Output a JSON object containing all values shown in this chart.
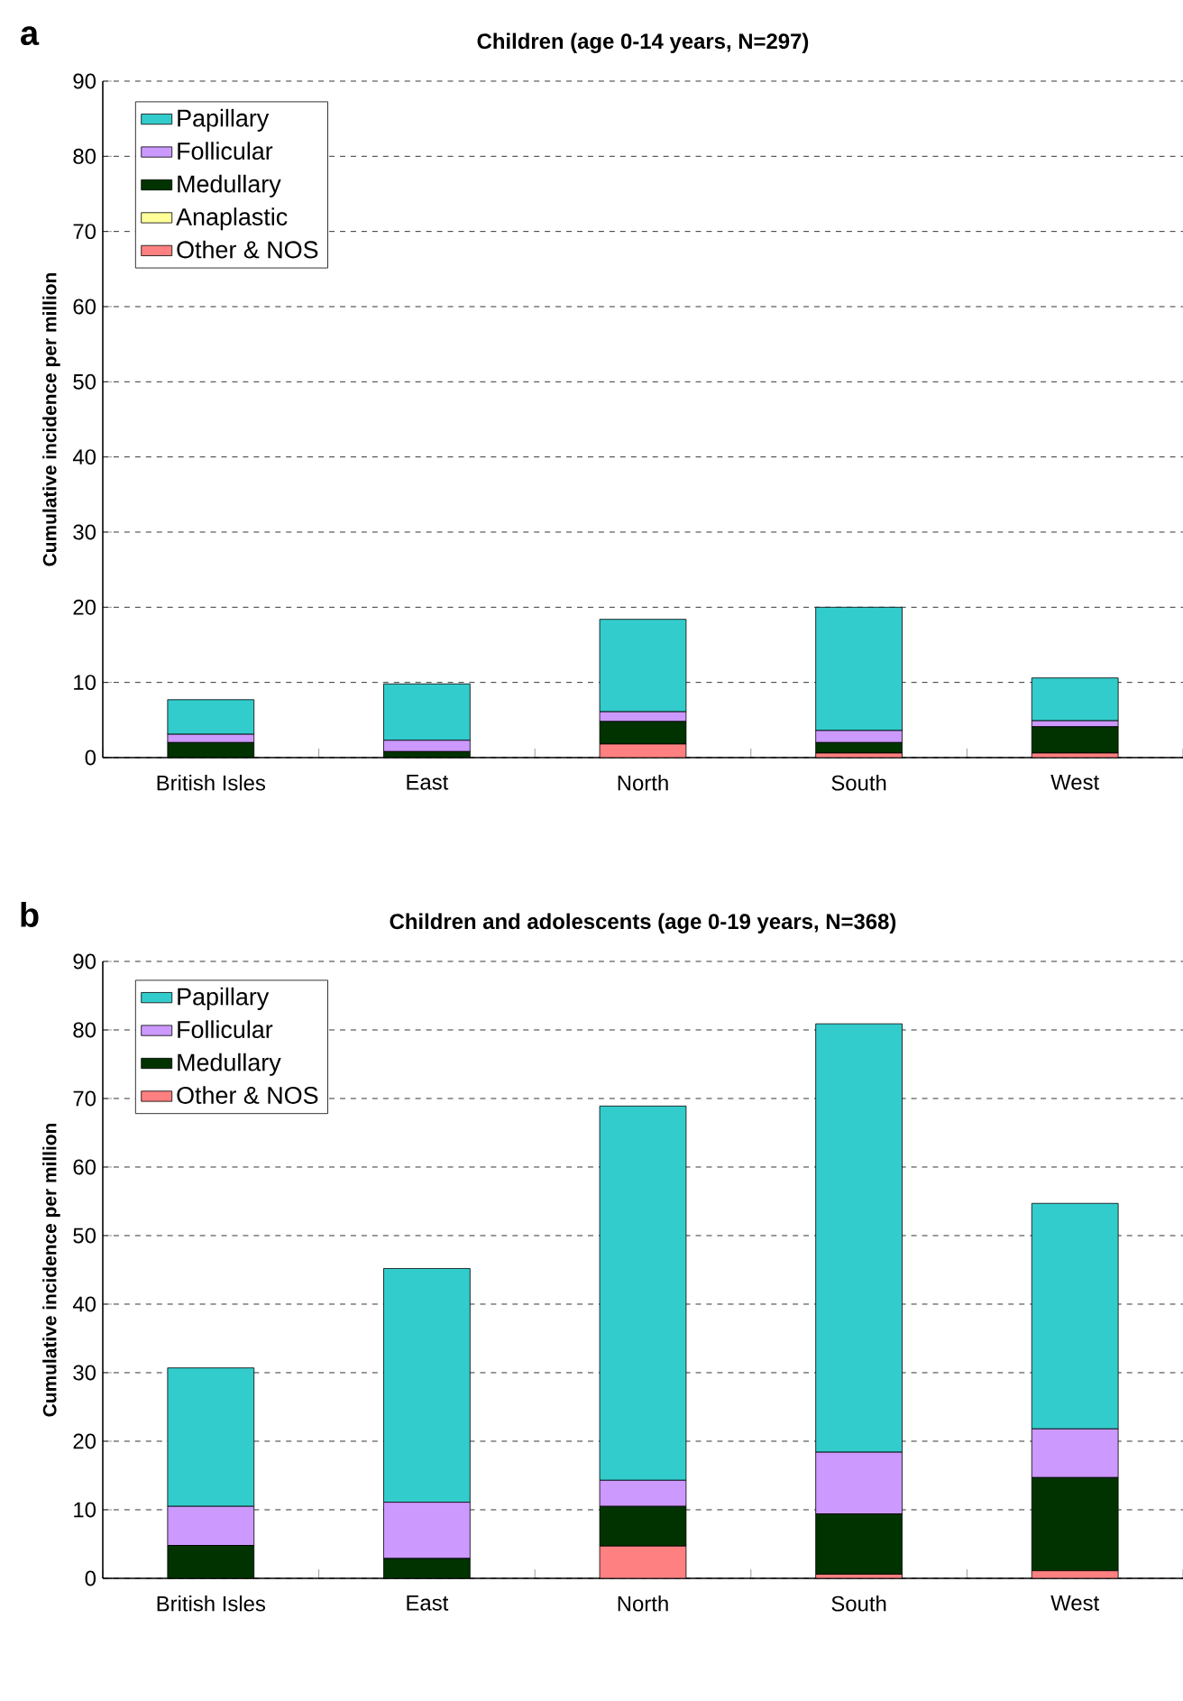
{
  "chart_data": [
    {
      "type": "bar",
      "stacked": true,
      "title": "Children (age 0-14 years, N=297)",
      "ylabel": "Cumulative incidence per million",
      "annotations": [
        "a"
      ],
      "categories": [
        "British Isles",
        "East",
        "North",
        "South",
        "West"
      ],
      "ylim": [
        0,
        90
      ],
      "yticks": [
        0,
        10,
        20,
        30,
        40,
        50,
        60,
        70,
        80,
        90
      ],
      "grid": "y",
      "legend": "top left",
      "series": [
        {
          "name": "Other & NOS",
          "color": "#ff8080",
          "values": [
            0,
            0,
            1.8,
            0.6,
            0.6
          ]
        },
        {
          "name": "Anaplastic",
          "color": "#ffff99",
          "values": [
            0,
            0,
            0,
            0,
            0
          ]
        },
        {
          "name": "Medullary",
          "color": "#003300",
          "values": [
            2.0,
            0.8,
            3.0,
            1.4,
            3.5
          ]
        },
        {
          "name": "Follicular",
          "color": "#cc99ff",
          "values": [
            1.1,
            1.5,
            1.3,
            1.6,
            0.8
          ]
        },
        {
          "name": "Papillary",
          "color": "#33cccc",
          "values": [
            4.6,
            7.5,
            12.3,
            16.4,
            5.7
          ]
        }
      ]
    },
    {
      "type": "bar",
      "stacked": true,
      "title": "Children and adolescents (age 0-19 years, N=368)",
      "ylabel": "Cumulative incidence per million",
      "annotations": [
        "b"
      ],
      "categories": [
        "British Isles",
        "East",
        "North",
        "South",
        "West"
      ],
      "ylim": [
        0,
        90
      ],
      "yticks": [
        0,
        10,
        20,
        30,
        40,
        50,
        60,
        70,
        80,
        90
      ],
      "grid": "y",
      "legend": "top left",
      "series": [
        {
          "name": "Other & NOS",
          "color": "#ff8080",
          "values": [
            0,
            0,
            4.7,
            0.6,
            1.1
          ]
        },
        {
          "name": "Medullary",
          "color": "#003300",
          "values": [
            4.8,
            2.9,
            5.8,
            8.8,
            13.6
          ]
        },
        {
          "name": "Follicular",
          "color": "#cc99ff",
          "values": [
            5.7,
            8.2,
            3.8,
            9.0,
            7.1
          ]
        },
        {
          "name": "Papillary",
          "color": "#33cccc",
          "values": [
            20.2,
            34.1,
            54.6,
            62.5,
            32.9
          ]
        }
      ]
    }
  ]
}
